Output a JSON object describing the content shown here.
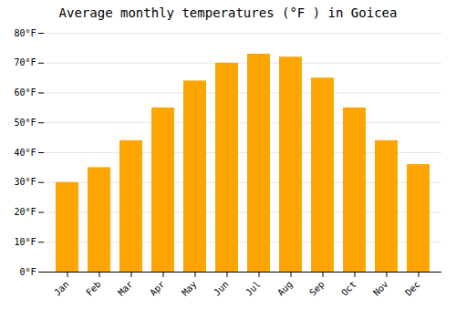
{
  "chart_data": {
    "type": "bar",
    "title": "Average monthly temperatures (°F ) in Goicea",
    "categories": [
      "Jan",
      "Feb",
      "Mar",
      "Apr",
      "May",
      "Jun",
      "Jul",
      "Aug",
      "Sep",
      "Oct",
      "Nov",
      "Dec"
    ],
    "values": [
      30,
      35,
      44,
      55,
      64,
      70,
      73,
      72,
      65,
      55,
      44,
      36
    ],
    "color": "#FFA500",
    "ylim": [
      0,
      80
    ],
    "yticks": [
      {
        "value": 0,
        "label": "0°F"
      },
      {
        "value": 10,
        "label": "10°F"
      },
      {
        "value": 20,
        "label": "20°F"
      },
      {
        "value": 30,
        "label": "30°F"
      },
      {
        "value": 40,
        "label": "40°F"
      },
      {
        "value": 50,
        "label": "50°F"
      },
      {
        "value": 60,
        "label": "60°F"
      },
      {
        "value": 70,
        "label": "70°F"
      },
      {
        "value": 80,
        "label": "80°F"
      }
    ],
    "grid": true
  }
}
